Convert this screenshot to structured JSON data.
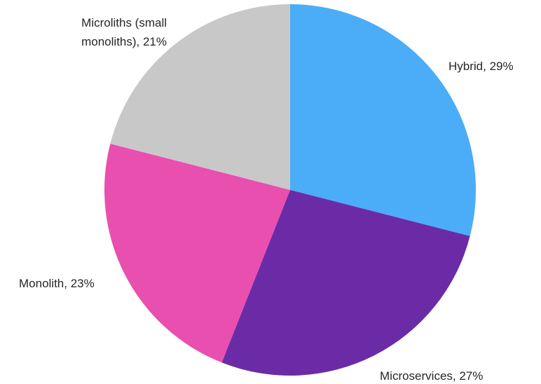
{
  "chart_data": {
    "type": "pie",
    "title": "",
    "start_angle_deg": 0,
    "direction": "clockwise",
    "legend": "none",
    "slices": [
      {
        "label": "Hybrid, 29%",
        "name": "Hybrid",
        "value": 29,
        "color": "#4BADF8"
      },
      {
        "label": "Microservices, 27%",
        "name": "Microservices",
        "value": 27,
        "color": "#6C2BA6"
      },
      {
        "label": "Monolith, 23%",
        "name": "Monolith",
        "value": 23,
        "color": "#E84FAF"
      },
      {
        "label_lines": [
          "Microliths (small",
          "monoliths), 21%"
        ],
        "name": "Microliths (small monoliths)",
        "value": 21,
        "color": "#C8C8C8"
      }
    ]
  }
}
